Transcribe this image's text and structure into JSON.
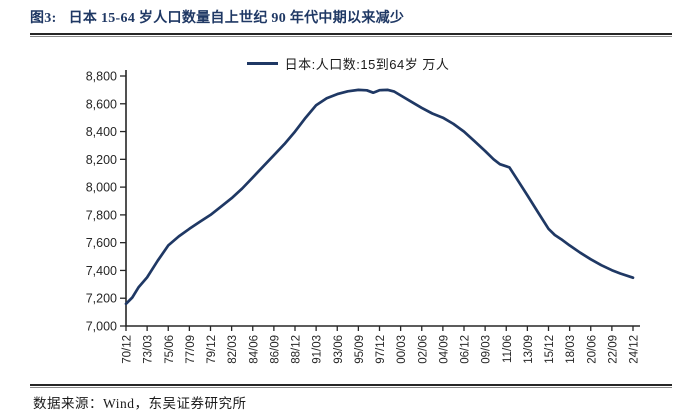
{
  "header": {
    "title_label": "图3:",
    "title_text": "日本 15-64 岁人口数量自上世纪 90 年代中期以来减少"
  },
  "footer": {
    "source_text": "数据来源：Wind，东吴证券研究所"
  },
  "colors": {
    "title": "#1F3864",
    "line": "#1F3864",
    "axis": "#262626"
  },
  "chart_data": {
    "type": "line",
    "legend": "日本:人口数:15到64岁  万人",
    "legend_position": "top-center",
    "title": "",
    "xlabel": "",
    "ylabel": "",
    "grid": false,
    "ylim": [
      7000,
      8800
    ],
    "y_tick_step": 200,
    "y_tick_values": [
      8800,
      8600,
      8400,
      8200,
      8000,
      7800,
      7600,
      7400,
      7200,
      7000
    ],
    "y_tick_labels": [
      "8,800",
      "8,600",
      "8,400",
      "8,200",
      "8,000",
      "7,800",
      "7,600",
      "7,400",
      "7,200",
      "7,000"
    ],
    "categories": [
      "70/12",
      "73/03",
      "75/06",
      "77/09",
      "79/12",
      "82/03",
      "84/06",
      "86/09",
      "88/12",
      "91/03",
      "93/06",
      "95/09",
      "97/12",
      "00/03",
      "02/06",
      "04/09",
      "06/12",
      "09/03",
      "11/06",
      "13/09",
      "15/12",
      "18/03",
      "20/06",
      "22/09",
      "24/12"
    ],
    "values": [
      7160,
      7350,
      7580,
      7700,
      7800,
      7920,
      8070,
      8230,
      8400,
      8590,
      8670,
      8700,
      8700,
      8660,
      8570,
      8500,
      8400,
      8260,
      8150,
      7940,
      7700,
      7580,
      7480,
      7400,
      7350
    ],
    "points": [
      [
        0,
        7160
      ],
      [
        0.3,
        7205
      ],
      [
        0.6,
        7280
      ],
      [
        1,
        7350
      ],
      [
        1.5,
        7470
      ],
      [
        2,
        7580
      ],
      [
        2.5,
        7645
      ],
      [
        3,
        7700
      ],
      [
        3.5,
        7750
      ],
      [
        4,
        7800
      ],
      [
        4.5,
        7860
      ],
      [
        5,
        7920
      ],
      [
        5.5,
        7990
      ],
      [
        6,
        8070
      ],
      [
        6.5,
        8150
      ],
      [
        7,
        8230
      ],
      [
        7.5,
        8310
      ],
      [
        8,
        8400
      ],
      [
        8.5,
        8500
      ],
      [
        9,
        8590
      ],
      [
        9.5,
        8640
      ],
      [
        10,
        8670
      ],
      [
        10.5,
        8690
      ],
      [
        11,
        8700
      ],
      [
        11.4,
        8697
      ],
      [
        11.7,
        8680
      ],
      [
        12,
        8698
      ],
      [
        12.4,
        8700
      ],
      [
        12.7,
        8688
      ],
      [
        13,
        8660
      ],
      [
        13.5,
        8615
      ],
      [
        14,
        8570
      ],
      [
        14.5,
        8530
      ],
      [
        15,
        8500
      ],
      [
        15.5,
        8455
      ],
      [
        16,
        8400
      ],
      [
        16.5,
        8330
      ],
      [
        17,
        8260
      ],
      [
        17.4,
        8200
      ],
      [
        17.7,
        8165
      ],
      [
        18,
        8150
      ],
      [
        18.15,
        8142
      ],
      [
        18.5,
        8060
      ],
      [
        19,
        7940
      ],
      [
        19.5,
        7820
      ],
      [
        20,
        7700
      ],
      [
        20.3,
        7655
      ],
      [
        20.6,
        7625
      ],
      [
        21,
        7580
      ],
      [
        21.5,
        7528
      ],
      [
        22,
        7480
      ],
      [
        22.5,
        7438
      ],
      [
        23,
        7402
      ],
      [
        23.4,
        7378
      ],
      [
        24,
        7348
      ]
    ]
  }
}
